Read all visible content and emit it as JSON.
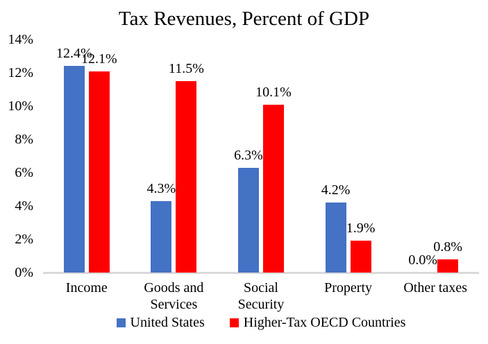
{
  "chart_data": {
    "type": "bar",
    "title": "Tax Revenues, Percent of GDP",
    "categories": [
      "Income",
      "Goods and\nServices",
      "Social\nSecurity",
      "Property",
      "Other taxes"
    ],
    "series": [
      {
        "name": "United States",
        "color": "#4472C4",
        "values": [
          12.4,
          4.3,
          6.3,
          4.2,
          0.0
        ],
        "labels": [
          "12.4%",
          "4.3%",
          "6.3%",
          "4.2%",
          "0.0%"
        ]
      },
      {
        "name": "Higher-Tax OECD Countries",
        "color": "#FF0000",
        "values": [
          12.1,
          11.5,
          10.1,
          1.9,
          0.8
        ],
        "labels": [
          "12.1%",
          "11.5%",
          "10.1%",
          "1.9%",
          "0.8%"
        ]
      }
    ],
    "y_axis": {
      "min": 0,
      "max": 14,
      "tick_step": 2,
      "ticks": [
        "0%",
        "2%",
        "4%",
        "6%",
        "8%",
        "10%",
        "12%",
        "14%"
      ]
    },
    "grid": false,
    "legend_position": "bottom",
    "axis_line_color": "#D9D9D9",
    "text_color": "#000000",
    "background": "#FFFFFF"
  }
}
